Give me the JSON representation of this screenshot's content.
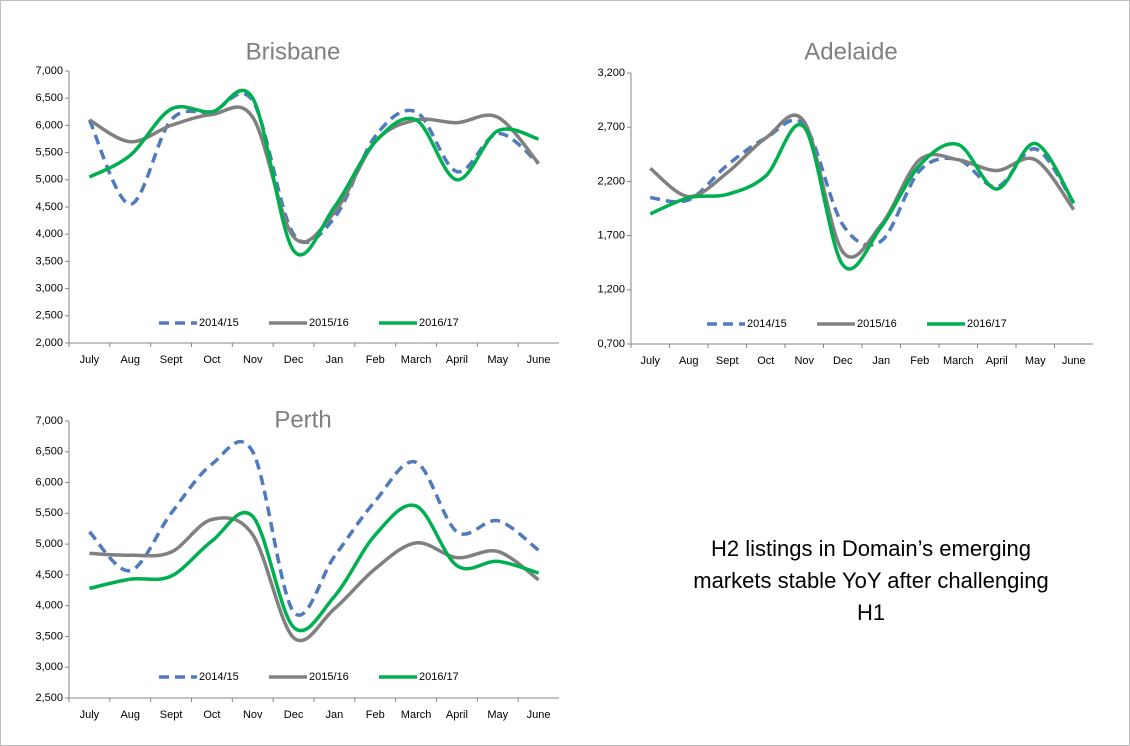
{
  "chart_data": [
    {
      "type": "line",
      "title": "Brisbane",
      "categories": [
        "July",
        "Aug",
        "Sept",
        "Oct",
        "Nov",
        "Dec",
        "Jan",
        "Feb",
        "March",
        "April",
        "May",
        "June"
      ],
      "series": [
        {
          "name": "2014/15",
          "color": "#4f7bbd",
          "dashed": true,
          "values": [
            6100,
            4550,
            6100,
            6250,
            6450,
            4000,
            4300,
            5800,
            6250,
            5150,
            5850,
            5300
          ]
        },
        {
          "name": "2015/16",
          "color": "#808080",
          "dashed": false,
          "values": [
            6100,
            5700,
            6000,
            6200,
            6150,
            3950,
            4400,
            5700,
            6100,
            6050,
            6150,
            5300
          ]
        },
        {
          "name": "2016/17",
          "color": "#00b050",
          "dashed": false,
          "values": [
            5050,
            5450,
            6300,
            6250,
            6500,
            3700,
            4500,
            5700,
            6100,
            5000,
            5900,
            5750
          ]
        }
      ],
      "ylim": [
        2000,
        7000
      ],
      "yticks": [
        {
          "value": 2000,
          "label": "2,000"
        },
        {
          "value": 2500,
          "label": "2,500"
        },
        {
          "value": 3000,
          "label": "3,000"
        },
        {
          "value": 3500,
          "label": "3,500"
        },
        {
          "value": 4000,
          "label": "4,000"
        },
        {
          "value": 4500,
          "label": "4,500"
        },
        {
          "value": 5000,
          "label": "5,000"
        },
        {
          "value": 5500,
          "label": "5,500"
        },
        {
          "value": 6000,
          "label": "6,000"
        },
        {
          "value": 6500,
          "label": "6,500"
        },
        {
          "value": 7000,
          "label": "7,000"
        }
      ],
      "legend": "lower center",
      "grid": false
    },
    {
      "type": "line",
      "title": "Adelaide",
      "categories": [
        "July",
        "Aug",
        "Sept",
        "Oct",
        "Nov",
        "Dec",
        "Jan",
        "Feb",
        "March",
        "April",
        "May",
        "June"
      ],
      "series": [
        {
          "name": "2014/15",
          "color": "#4f7bbd",
          "dashed": true,
          "values": [
            2050,
            2030,
            2350,
            2600,
            2720,
            1800,
            1650,
            2300,
            2400,
            2150,
            2500,
            2000
          ]
        },
        {
          "name": "2015/16",
          "color": "#808080",
          "dashed": false,
          "values": [
            2320,
            2060,
            2280,
            2600,
            2750,
            1550,
            1800,
            2400,
            2400,
            2300,
            2400,
            1940
          ]
        },
        {
          "name": "2016/17",
          "color": "#00b050",
          "dashed": false,
          "values": [
            1900,
            2050,
            2080,
            2250,
            2700,
            1430,
            1780,
            2350,
            2540,
            2130,
            2550,
            2000
          ]
        }
      ],
      "ylim": [
        700,
        3200
      ],
      "yticks": [
        {
          "value": 700,
          "label": "0,700"
        },
        {
          "value": 1200,
          "label": "1,200"
        },
        {
          "value": 1700,
          "label": "1,700"
        },
        {
          "value": 2200,
          "label": "2,200"
        },
        {
          "value": 2700,
          "label": "2,700"
        },
        {
          "value": 3200,
          "label": "3,200"
        }
      ],
      "legend": "lower center",
      "grid": false
    },
    {
      "type": "line",
      "title": "Perth",
      "categories": [
        "July",
        "Aug",
        "Sept",
        "Oct",
        "Nov",
        "Dec",
        "Jan",
        "Feb",
        "March",
        "April",
        "May",
        "June"
      ],
      "series": [
        {
          "name": "2014/15",
          "color": "#4f7bbd",
          "dashed": true,
          "values": [
            5200,
            4570,
            5500,
            6300,
            6500,
            3900,
            4800,
            5700,
            6330,
            5200,
            5380,
            4900
          ]
        },
        {
          "name": "2015/16",
          "color": "#808080",
          "dashed": false,
          "values": [
            4850,
            4820,
            4870,
            5400,
            5150,
            3480,
            3950,
            4600,
            5020,
            4780,
            4880,
            4420
          ]
        },
        {
          "name": "2016/17",
          "color": "#00b050",
          "dashed": false,
          "values": [
            4280,
            4430,
            4480,
            5050,
            5450,
            3650,
            4150,
            5150,
            5620,
            4650,
            4720,
            4530
          ]
        }
      ],
      "ylim": [
        2500,
        7000
      ],
      "yticks": [
        {
          "value": 2500,
          "label": "2,500"
        },
        {
          "value": 3000,
          "label": "3,000"
        },
        {
          "value": 3500,
          "label": "3,500"
        },
        {
          "value": 4000,
          "label": "4,000"
        },
        {
          "value": 4500,
          "label": "4,500"
        },
        {
          "value": 5000,
          "label": "5,000"
        },
        {
          "value": 5500,
          "label": "5,500"
        },
        {
          "value": 6000,
          "label": "6,000"
        },
        {
          "value": 6500,
          "label": "6,500"
        },
        {
          "value": 7000,
          "label": "7,000"
        }
      ],
      "legend": "lower center",
      "grid": false
    }
  ],
  "annotation": "H2 listings in Domain’s emerging markets stable YoY after challenging H1"
}
